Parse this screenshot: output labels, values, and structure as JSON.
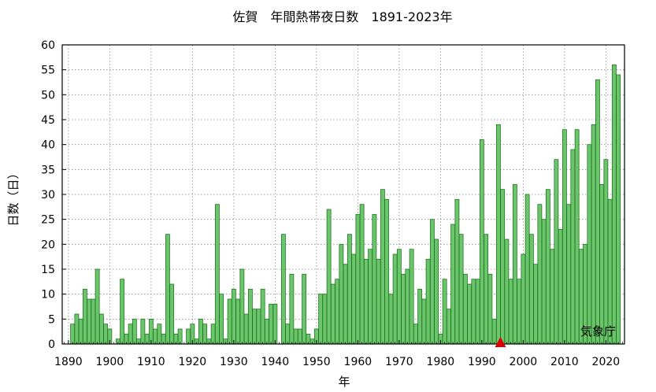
{
  "chart_data": {
    "type": "bar",
    "title": "佐賀　年間熱帯夜日数　1891-2023年",
    "xlabel": "年",
    "ylabel": "日数（日）",
    "credit": "気象庁",
    "x_start": 1891,
    "x_end": 2023,
    "xlim": [
      1888.5,
      2024.5
    ],
    "ylim": [
      0,
      60
    ],
    "yticks": [
      0,
      5,
      10,
      15,
      20,
      25,
      30,
      35,
      40,
      45,
      50,
      55,
      60
    ],
    "xticks": [
      1890,
      1900,
      1910,
      1920,
      1930,
      1940,
      1950,
      1960,
      1970,
      1980,
      1990,
      2000,
      2010,
      2020
    ],
    "grid": true,
    "colors": {
      "bar_fill": "#6cc46c",
      "bar_stroke": "#1f7a1f",
      "marker": "#dd0000",
      "grid": "#888888"
    },
    "marker_year": 1994.5,
    "values": [
      4,
      6,
      5,
      11,
      9,
      9,
      15,
      6,
      4,
      3,
      0,
      1,
      13,
      2,
      4,
      5,
      1,
      5,
      2,
      5,
      3,
      4,
      2,
      22,
      12,
      2,
      3,
      0,
      3,
      4,
      1,
      5,
      4,
      1,
      4,
      28,
      10,
      1,
      9,
      11,
      9,
      15,
      6,
      11,
      7,
      7,
      11,
      5,
      8,
      8,
      0,
      22,
      4,
      14,
      3,
      3,
      14,
      2,
      1,
      3,
      10,
      10,
      27,
      12,
      13,
      20,
      16,
      22,
      18,
      26,
      28,
      17,
      19,
      26,
      17,
      31,
      29,
      10,
      18,
      19,
      14,
      15,
      19,
      4,
      11,
      9,
      17,
      25,
      21,
      2,
      13,
      7,
      24,
      29,
      22,
      14,
      12,
      13,
      13,
      41,
      22,
      14,
      5,
      44,
      31,
      21,
      13,
      32,
      13,
      18,
      30,
      22,
      16,
      28,
      25,
      31,
      19,
      37,
      23,
      43,
      28,
      39,
      43,
      19,
      20,
      40,
      44,
      53,
      32,
      37,
      29,
      56,
      54
    ]
  }
}
